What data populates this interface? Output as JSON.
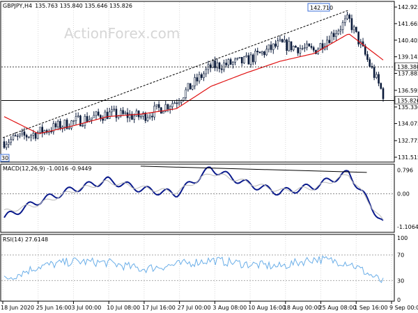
{
  "instrument": {
    "symbol_tf": "GBPJPY,H4",
    "ohlc": "135.763 135.840 135.646 135.826"
  },
  "watermark": "ActionForex.com",
  "colors": {
    "candles": "#0a1a3a",
    "ma": "#e01010",
    "trendline": "#000000",
    "macd_main": "#0a1a8c",
    "macd_signal": "#b9b9b9",
    "rsi": "#6aaee8",
    "grid": "#d8d8d8"
  },
  "price_panel": {
    "ylim": [
      131.2,
      143.3
    ],
    "ticks": [
      "142.925",
      "141.665",
      "140.405",
      "139.145",
      "137.885",
      "136.595",
      "135.330",
      "134.075",
      "132.775",
      "131.515"
    ],
    "horizontal_lines": [
      {
        "label": "138.380",
        "value": 138.38
      },
      {
        "label": "135.826",
        "value": 135.826
      }
    ],
    "high_label": "142.710",
    "low_label": "30"
  },
  "macd_panel": {
    "title": "MACD(12,26,9) -1.0016 -0.9449",
    "ticks": [
      "0.796",
      "0.00",
      "-1.1064"
    ]
  },
  "rsi_panel": {
    "title": "RSI(14) 27.6148",
    "ticks": [
      "100",
      "70",
      "30",
      "0"
    ]
  },
  "time_axis": [
    "18 Jun 2020",
    "25 Jun 16:00",
    "3 Jul 00:00",
    "10 Jul 08:00",
    "17 Jul 16:00",
    "27 Jul 00:00",
    "3 Aug 08:00",
    "10 Aug 16:00",
    "18 Aug 00:00",
    "25 Aug 08:00",
    "1 Sep 16:00",
    "9 Sep 00:00"
  ],
  "chart_data": [
    {
      "type": "line",
      "title": "GBPJPY,H4",
      "note": "candlestick price (approximate close path)",
      "x": [
        "18 Jun 2020",
        "25 Jun 16:00",
        "3 Jul 00:00",
        "10 Jul 08:00",
        "17 Jul 16:00",
        "27 Jul 00:00",
        "3 Aug 08:00",
        "10 Aug 16:00",
        "18 Aug 00:00",
        "25 Aug 08:00",
        "1 Sep 16:00",
        "9 Sep 00:00"
      ],
      "series": [
        {
          "name": "price",
          "values": [
            132.7,
            133.4,
            134.2,
            134.8,
            134.6,
            135.8,
            138.4,
            138.8,
            140.1,
            139.6,
            142.0,
            136.3
          ]
        },
        {
          "name": "55 MA",
          "values": [
            134.6,
            133.3,
            133.9,
            134.6,
            134.8,
            135.2,
            136.9,
            137.9,
            138.8,
            139.4,
            140.9,
            138.9
          ]
        }
      ],
      "trendline": {
        "from": [
          "18 Jun 2020",
          133.0
        ],
        "to": [
          "1 Sep 16:00",
          142.7
        ]
      },
      "ylim": [
        131.2,
        143.3
      ]
    },
    {
      "type": "line",
      "title": "MACD(12,26,9) -1.0016 -0.9449",
      "x": [
        "18 Jun 2020",
        "25 Jun 16:00",
        "3 Jul 00:00",
        "10 Jul 08:00",
        "17 Jul 16:00",
        "27 Jul 00:00",
        "3 Aug 08:00",
        "10 Aug 16:00",
        "18 Aug 00:00",
        "25 Aug 08:00",
        "1 Sep 16:00",
        "9 Sep 00:00"
      ],
      "series": [
        {
          "name": "MACD",
          "values": [
            -0.8,
            -0.25,
            0.15,
            0.45,
            0.15,
            0.0,
            0.85,
            0.35,
            0.05,
            0.25,
            0.7,
            -1.0
          ]
        },
        {
          "name": "signal",
          "values": [
            -0.6,
            -0.35,
            0.1,
            0.4,
            0.2,
            0.05,
            0.7,
            0.4,
            0.1,
            0.2,
            0.65,
            -0.94
          ]
        }
      ],
      "ylim": [
        -1.25,
        0.95
      ]
    },
    {
      "type": "line",
      "title": "RSI(14) 27.6148",
      "x": [
        "18 Jun 2020",
        "25 Jun 16:00",
        "3 Jul 00:00",
        "10 Jul 08:00",
        "17 Jul 16:00",
        "27 Jul 00:00",
        "3 Aug 08:00",
        "10 Aug 16:00",
        "18 Aug 00:00",
        "25 Aug 08:00",
        "1 Sep 16:00",
        "9 Sep 00:00"
      ],
      "series": [
        {
          "name": "RSI",
          "values": [
            32,
            52,
            60,
            58,
            48,
            55,
            62,
            56,
            52,
            64,
            58,
            27.6
          ]
        }
      ],
      "ylim": [
        0,
        100
      ]
    }
  ]
}
